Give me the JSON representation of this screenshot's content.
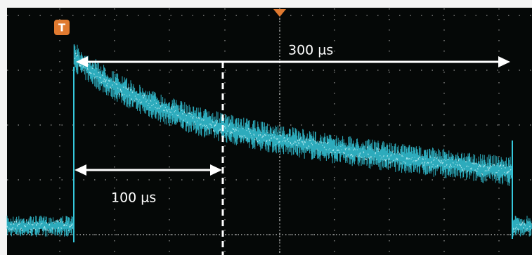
{
  "trigger_marker": "T",
  "annotations": {
    "long_span": "300 µs",
    "short_span": "100 µs"
  }
}
